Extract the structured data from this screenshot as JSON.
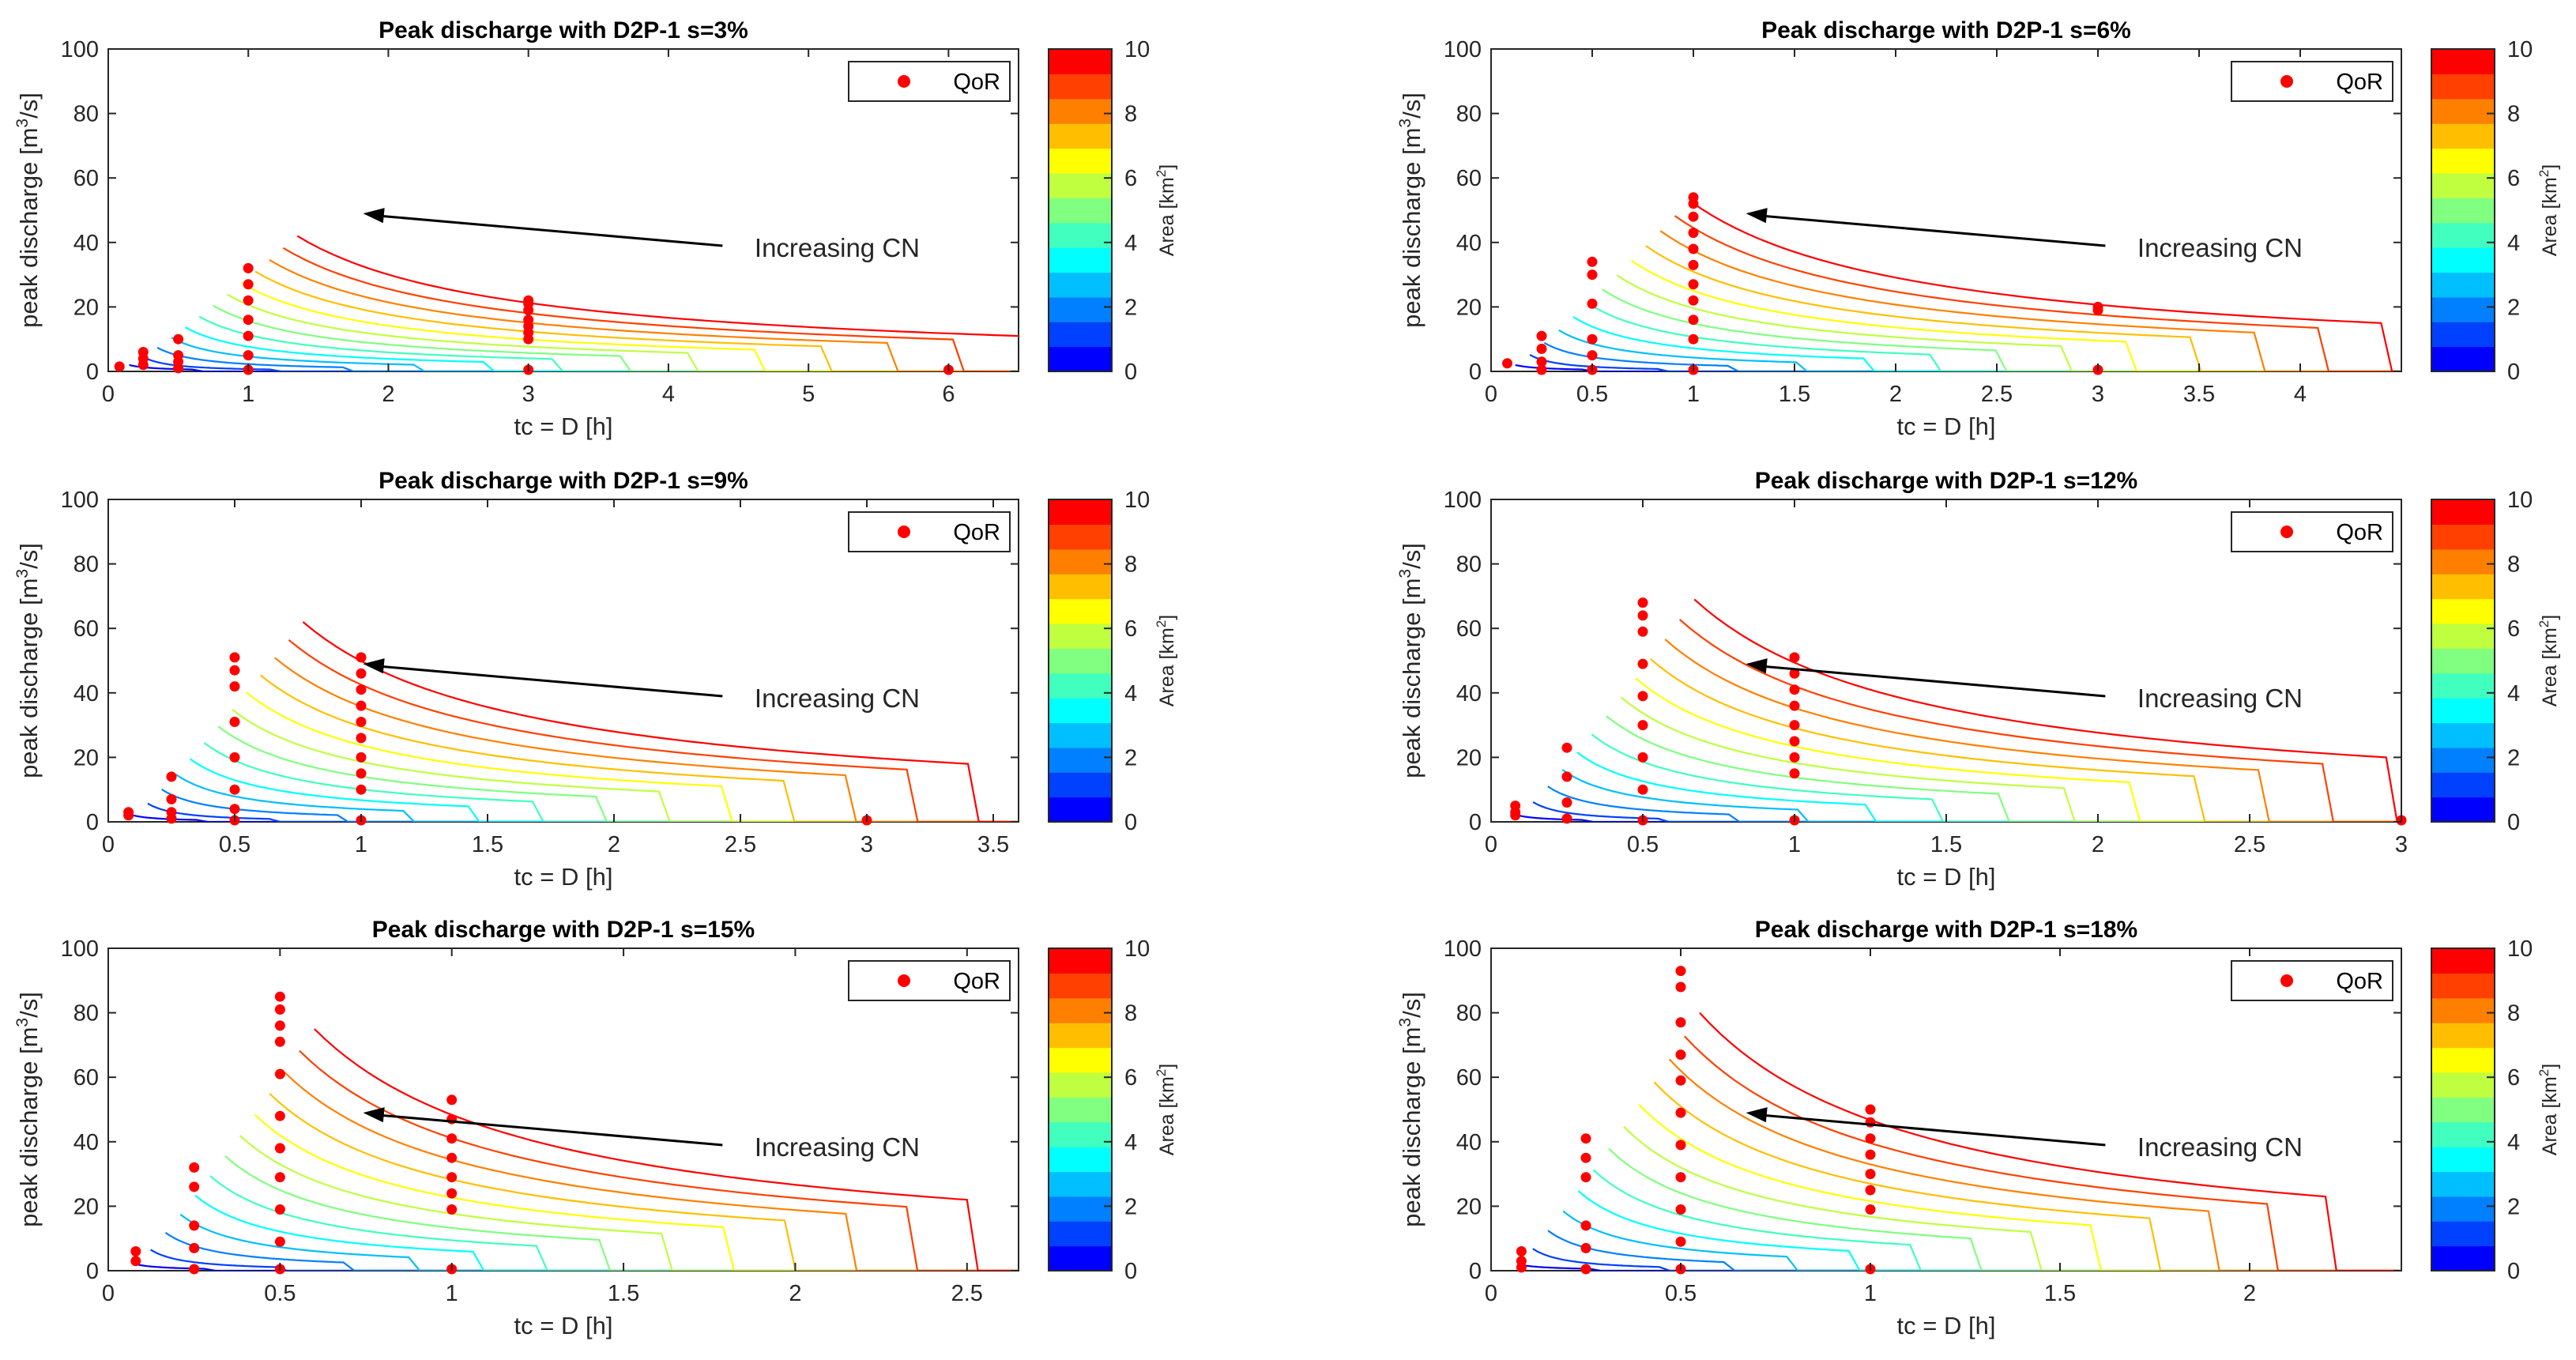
{
  "figure": {
    "ylabel": "peak discharge [m",
    "ylabel_sup": "3",
    "ylabel_end": "/s]",
    "xlabel": "tc = D [h]",
    "legend_label": "QoR",
    "annotation": "Increasing CN",
    "colorbar_label": "Area [km",
    "colorbar_sup": "2",
    "colorbar_end": "]",
    "colorbar_ticks": [
      "0",
      "2",
      "4",
      "6",
      "8",
      "10"
    ],
    "colors": {
      "marker": "#ff0000",
      "colormap": [
        "#0000ff",
        "#0040ff",
        "#0080ff",
        "#00bfff",
        "#00ffff",
        "#40ffbf",
        "#80ff80",
        "#bfff40",
        "#ffff00",
        "#ffbf00",
        "#ff8000",
        "#ff4000",
        "#ff0000"
      ]
    }
  },
  "chart_data": [
    {
      "type": "line",
      "title": "Peak discharge with D2P-1 s=3%",
      "xlabel": "tc = D [h]",
      "ylabel": "peak discharge [m3/s]",
      "xlim": [
        0,
        6.5
      ],
      "ylim": [
        0,
        100
      ],
      "xticks": [
        0,
        1,
        2,
        3,
        4,
        5,
        6
      ],
      "yticks": [
        0,
        20,
        40,
        60,
        80,
        100
      ],
      "curves": {
        "tc_start_min": 0.15,
        "tc_start_max": 1.35,
        "peak_max": 42,
        "tc_end_min": 0.6,
        "tc_end_max": 6.5,
        "drop_end": 11,
        "count": 13
      },
      "series": [
        {
          "name": "QoR",
          "points": [
            [
              0.08,
              1.5
            ],
            [
              0.25,
              2
            ],
            [
              0.25,
              4
            ],
            [
              0.25,
              6
            ],
            [
              0.5,
              1
            ],
            [
              0.5,
              3
            ],
            [
              0.5,
              5
            ],
            [
              0.5,
              10
            ],
            [
              1,
              0.5
            ],
            [
              1,
              5
            ],
            [
              1,
              11
            ],
            [
              1,
              16
            ],
            [
              1,
              22
            ],
            [
              1,
              27
            ],
            [
              1,
              32
            ],
            [
              3,
              0.5
            ],
            [
              3,
              10
            ],
            [
              3,
              12
            ],
            [
              3,
              14
            ],
            [
              3,
              16
            ],
            [
              3,
              19
            ],
            [
              3,
              21
            ],
            [
              3,
              22
            ],
            [
              6,
              0.5
            ]
          ]
        }
      ]
    },
    {
      "type": "line",
      "title": "Peak discharge with D2P-1 s=6%",
      "xlabel": "tc = D [h]",
      "ylabel": "peak discharge [m3/s]",
      "xlim": [
        0,
        4.5
      ],
      "ylim": [
        0,
        100
      ],
      "xticks": [
        0,
        0.5,
        1,
        1.5,
        2,
        2.5,
        3,
        3.5,
        4
      ],
      "yticks": [
        0,
        20,
        40,
        60,
        80,
        100
      ],
      "curves": {
        "tc_start_min": 0.12,
        "tc_start_max": 0.98,
        "peak_max": 53,
        "tc_end_min": 0.45,
        "tc_end_max": 4.4,
        "drop_end": 15,
        "count": 13
      },
      "series": [
        {
          "name": "QoR",
          "points": [
            [
              0.08,
              2.5
            ],
            [
              0.25,
              0.5
            ],
            [
              0.25,
              3
            ],
            [
              0.25,
              7
            ],
            [
              0.25,
              11
            ],
            [
              0.5,
              0.5
            ],
            [
              0.5,
              5
            ],
            [
              0.5,
              10
            ],
            [
              0.5,
              21
            ],
            [
              0.5,
              30
            ],
            [
              0.5,
              34
            ],
            [
              1,
              0.5
            ],
            [
              1,
              10
            ],
            [
              1,
              16
            ],
            [
              1,
              22
            ],
            [
              1,
              27
            ],
            [
              1,
              33
            ],
            [
              1,
              38
            ],
            [
              1,
              43
            ],
            [
              1,
              48
            ],
            [
              1,
              52
            ],
            [
              1,
              54
            ],
            [
              3,
              0.5
            ],
            [
              3,
              19
            ],
            [
              3,
              20
            ]
          ]
        }
      ]
    },
    {
      "type": "line",
      "title": "Peak discharge with D2P-1 s=9%",
      "xlabel": "tc = D [h]",
      "ylabel": "peak discharge [m3/s]",
      "xlim": [
        0,
        3.6
      ],
      "ylim": [
        0,
        100
      ],
      "xticks": [
        0,
        0.5,
        1,
        1.5,
        2,
        2.5,
        3,
        3.5
      ],
      "yticks": [
        0,
        20,
        40,
        60,
        80,
        100
      ],
      "curves": {
        "tc_start_min": 0.1,
        "tc_start_max": 0.77,
        "peak_max": 62,
        "tc_end_min": 0.35,
        "tc_end_max": 3.4,
        "drop_end": 18,
        "count": 13
      },
      "series": [
        {
          "name": "QoR",
          "points": [
            [
              0.08,
              2
            ],
            [
              0.08,
              3
            ],
            [
              0.25,
              1
            ],
            [
              0.25,
              3
            ],
            [
              0.25,
              7
            ],
            [
              0.25,
              14
            ],
            [
              0.5,
              0.5
            ],
            [
              0.5,
              4
            ],
            [
              0.5,
              10
            ],
            [
              0.5,
              20
            ],
            [
              0.5,
              31
            ],
            [
              0.5,
              42
            ],
            [
              0.5,
              47
            ],
            [
              0.5,
              51
            ],
            [
              1,
              0.5
            ],
            [
              1,
              10
            ],
            [
              1,
              15
            ],
            [
              1,
              20
            ],
            [
              1,
              26
            ],
            [
              1,
              31
            ],
            [
              1,
              36
            ],
            [
              1,
              41
            ],
            [
              1,
              46
            ],
            [
              1,
              51
            ],
            [
              3,
              0.5
            ]
          ]
        }
      ]
    },
    {
      "type": "line",
      "title": "Peak discharge with D2P-1 s=12%",
      "xlabel": "tc = D [h]",
      "ylabel": "peak discharge [m3/s]",
      "xlim": [
        0,
        3
      ],
      "ylim": [
        0,
        100
      ],
      "xticks": [
        0,
        0.5,
        1,
        1.5,
        2,
        2.5,
        3
      ],
      "yticks": [
        0,
        20,
        40,
        60,
        80,
        100
      ],
      "curves": {
        "tc_start_min": 0.09,
        "tc_start_max": 0.67,
        "peak_max": 69,
        "tc_end_min": 0.3,
        "tc_end_max": 2.95,
        "drop_end": 20,
        "count": 13
      },
      "series": [
        {
          "name": "QoR",
          "points": [
            [
              0.08,
              2
            ],
            [
              0.08,
              3
            ],
            [
              0.08,
              5
            ],
            [
              0.25,
              1
            ],
            [
              0.25,
              6
            ],
            [
              0.25,
              14
            ],
            [
              0.25,
              23
            ],
            [
              0.5,
              0.5
            ],
            [
              0.5,
              10
            ],
            [
              0.5,
              20
            ],
            [
              0.5,
              30
            ],
            [
              0.5,
              39
            ],
            [
              0.5,
              49
            ],
            [
              0.5,
              59
            ],
            [
              0.5,
              64
            ],
            [
              0.5,
              68
            ],
            [
              1,
              0.5
            ],
            [
              1,
              15
            ],
            [
              1,
              20
            ],
            [
              1,
              25
            ],
            [
              1,
              30
            ],
            [
              1,
              36
            ],
            [
              1,
              41
            ],
            [
              1,
              46
            ],
            [
              1,
              51
            ],
            [
              3,
              0.5
            ]
          ]
        }
      ]
    },
    {
      "type": "line",
      "title": "Peak discharge with D2P-1 s=15%",
      "xlabel": "tc = D [h]",
      "ylabel": "peak discharge [m3/s]",
      "xlim": [
        0,
        2.65
      ],
      "ylim": [
        0,
        100
      ],
      "xticks": [
        0,
        0.5,
        1,
        1.5,
        2,
        2.5
      ],
      "yticks": [
        0,
        20,
        40,
        60,
        80,
        100
      ],
      "curves": {
        "tc_start_min": 0.08,
        "tc_start_max": 0.6,
        "peak_max": 75,
        "tc_end_min": 0.28,
        "tc_end_max": 2.5,
        "drop_end": 22,
        "count": 13
      },
      "series": [
        {
          "name": "QoR",
          "points": [
            [
              0.08,
              3
            ],
            [
              0.08,
              6
            ],
            [
              0.25,
              0.5
            ],
            [
              0.25,
              7
            ],
            [
              0.25,
              14
            ],
            [
              0.25,
              26
            ],
            [
              0.25,
              32
            ],
            [
              0.5,
              0.5
            ],
            [
              0.5,
              9
            ],
            [
              0.5,
              19
            ],
            [
              0.5,
              29
            ],
            [
              0.5,
              38
            ],
            [
              0.5,
              48
            ],
            [
              0.5,
              61
            ],
            [
              0.5,
              71
            ],
            [
              0.5,
              76
            ],
            [
              0.5,
              81
            ],
            [
              0.5,
              85
            ],
            [
              1,
              0.5
            ],
            [
              1,
              19
            ],
            [
              1,
              24
            ],
            [
              1,
              29
            ],
            [
              1,
              35
            ],
            [
              1,
              41
            ],
            [
              1,
              47
            ],
            [
              1,
              53
            ]
          ]
        }
      ]
    },
    {
      "type": "line",
      "title": "Peak discharge with D2P-1 s=18%",
      "xlabel": "tc = D [h]",
      "ylabel": "peak discharge [m3/s]",
      "xlim": [
        0,
        2.4
      ],
      "ylim": [
        0,
        100
      ],
      "xticks": [
        0,
        0.5,
        1,
        1.5,
        2
      ],
      "yticks": [
        0,
        20,
        40,
        60,
        80,
        100
      ],
      "curves": {
        "tc_start_min": 0.07,
        "tc_start_max": 0.55,
        "peak_max": 80,
        "tc_end_min": 0.26,
        "tc_end_max": 2.2,
        "drop_end": 23,
        "count": 13
      },
      "series": [
        {
          "name": "QoR",
          "points": [
            [
              0.08,
              1
            ],
            [
              0.08,
              3
            ],
            [
              0.08,
              6
            ],
            [
              0.25,
              0.5
            ],
            [
              0.25,
              7
            ],
            [
              0.25,
              14
            ],
            [
              0.25,
              29
            ],
            [
              0.25,
              35
            ],
            [
              0.25,
              41
            ],
            [
              0.5,
              0.5
            ],
            [
              0.5,
              9
            ],
            [
              0.5,
              19
            ],
            [
              0.5,
              29
            ],
            [
              0.5,
              39
            ],
            [
              0.5,
              49
            ],
            [
              0.5,
              59
            ],
            [
              0.5,
              67
            ],
            [
              0.5,
              77
            ],
            [
              0.5,
              88
            ],
            [
              0.5,
              93
            ],
            [
              1,
              0.5
            ],
            [
              1,
              19
            ],
            [
              1,
              25
            ],
            [
              1,
              30
            ],
            [
              1,
              36
            ],
            [
              1,
              41
            ],
            [
              1,
              46
            ],
            [
              1,
              50
            ]
          ]
        }
      ]
    }
  ]
}
